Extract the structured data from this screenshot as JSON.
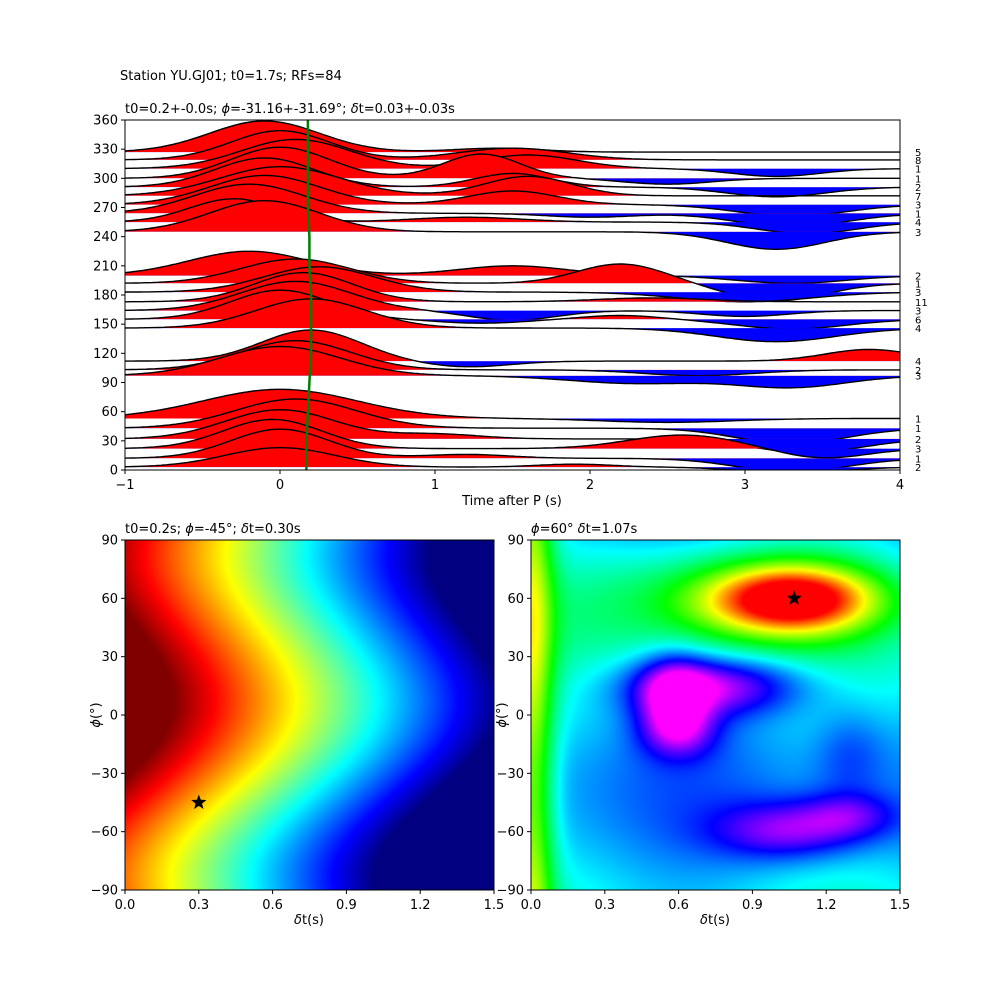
{
  "figure_title": "Station YU.GJ01; t0=1.7s; RFs=84",
  "chart_data": [
    {
      "type": "line",
      "subtype": "receiver-function-wiggles",
      "title": "t0=0.2+-0.0s; $\\phi$=-31.16+-31.69°; $\\delta$t=0.03+-0.03s",
      "xlabel": "Time after P (s)",
      "ylabel": "",
      "xlim": [
        -1,
        4
      ],
      "ylim": [
        0,
        360
      ],
      "xticks": [
        -1,
        0,
        1,
        2,
        3,
        4
      ],
      "yticks": [
        0,
        30,
        60,
        90,
        120,
        150,
        180,
        210,
        240,
        270,
        300,
        330,
        360
      ],
      "positive_fill": "#ff0000",
      "negative_fill": "#0000ff",
      "trace_color": "#000000",
      "pick_line_color": "#008000",
      "pick_line": {
        "x": [
          0.17,
          0.17,
          0.18,
          0.19,
          0.2,
          0.2,
          0.2,
          0.19,
          0.19,
          0.18,
          0.18,
          0.18,
          0.18
        ],
        "y": [
          0,
          30,
          60,
          90,
          120,
          150,
          180,
          210,
          240,
          270,
          300,
          330,
          360
        ]
      },
      "traces": [
        {
          "baz": 3,
          "count": "2",
          "peaks": [
            [
              0.0,
              20,
              0.5
            ],
            [
              1.9,
              3,
              0.35
            ],
            [
              3.3,
              -6,
              0.45
            ]
          ]
        },
        {
          "baz": 12,
          "count": "1",
          "peaks": [
            [
              0.0,
              30,
              0.45
            ],
            [
              1.2,
              4,
              0.4
            ],
            [
              3.3,
              -14,
              0.5
            ]
          ]
        },
        {
          "baz": 22,
          "count": "3",
          "peaks": [
            [
              -0.05,
              30,
              0.45
            ],
            [
              2.6,
              14,
              0.5
            ],
            [
              3.5,
              -10,
              0.4
            ]
          ]
        },
        {
          "baz": 32,
          "count": "2",
          "peaks": [
            [
              0.0,
              30,
              0.5
            ],
            [
              1.0,
              5,
              0.4
            ],
            [
              3.4,
              -14,
              0.5
            ]
          ]
        },
        {
          "baz": 43,
          "count": "1",
          "peaks": [
            [
              0.1,
              30,
              0.55
            ],
            [
              3.3,
              -16,
              0.5
            ]
          ]
        },
        {
          "baz": 53,
          "count": "1",
          "peaks": [
            [
              0.0,
              30,
              0.7
            ],
            [
              2.5,
              -4,
              0.6
            ]
          ]
        },
        {
          "baz": 97,
          "count": "3",
          "peaks": [
            [
              0.0,
              30,
              0.55
            ],
            [
              2.3,
              -8,
              0.6
            ],
            [
              3.3,
              -12,
              0.5
            ]
          ]
        },
        {
          "baz": 103,
          "count": "2",
          "peaks": [
            [
              0.1,
              30,
              0.5
            ],
            [
              2.7,
              -6,
              0.5
            ]
          ]
        },
        {
          "baz": 112,
          "count": "4",
          "peaks": [
            [
              0.2,
              32,
              0.45
            ],
            [
              1.2,
              -6,
              0.4
            ],
            [
              3.8,
              12,
              0.4
            ]
          ]
        },
        {
          "baz": 146,
          "count": "4",
          "peaks": [
            [
              0.2,
              30,
              0.5
            ],
            [
              3.2,
              -14,
              0.55
            ]
          ]
        },
        {
          "baz": 155,
          "count": "6",
          "peaks": [
            [
              0.0,
              30,
              0.45
            ],
            [
              1.3,
              -4,
              0.4
            ],
            [
              2.2,
              4,
              0.35
            ],
            [
              3.3,
              -10,
              0.5
            ]
          ]
        },
        {
          "baz": 164,
          "count": "3",
          "peaks": [
            [
              0.1,
              30,
              0.5
            ],
            [
              1.5,
              -10,
              0.4
            ],
            [
              3.0,
              -6,
              0.4
            ]
          ]
        },
        {
          "baz": 173,
          "count": "11",
          "peaks": [
            [
              0.15,
              30,
              0.45
            ],
            [
              2.4,
              4,
              0.5
            ]
          ]
        },
        {
          "baz": 183,
          "count": "3",
          "peaks": [
            [
              0.25,
              26,
              0.5
            ],
            [
              3.0,
              -10,
              0.6
            ]
          ]
        },
        {
          "baz": 192,
          "count": "1",
          "peaks": [
            [
              0.1,
              25,
              0.5
            ],
            [
              2.2,
              20,
              0.4
            ],
            [
              3.2,
              -18,
              0.45
            ]
          ]
        },
        {
          "baz": 200,
          "count": "2",
          "peaks": [
            [
              -0.2,
              25,
              0.55
            ],
            [
              1.5,
              10,
              0.5
            ],
            [
              3.3,
              -8,
              0.5
            ]
          ]
        },
        {
          "baz": 245,
          "count": "3",
          "peaks": [
            [
              -0.1,
              32,
              0.5
            ],
            [
              3.2,
              -18,
              0.45
            ]
          ]
        },
        {
          "baz": 255,
          "count": "4",
          "peaks": [
            [
              -0.3,
              24,
              0.4
            ],
            [
              1.2,
              5,
              0.5
            ],
            [
              3.4,
              -12,
              0.45
            ]
          ]
        },
        {
          "baz": 264,
          "count": "1",
          "peaks": [
            [
              -0.2,
              30,
              0.5
            ],
            [
              2.0,
              -4,
              0.4
            ],
            [
              3.3,
              -14,
              0.5
            ]
          ]
        },
        {
          "baz": 273,
          "count": "3",
          "peaks": [
            [
              -0.1,
              30,
              0.5
            ],
            [
              1.5,
              14,
              0.4
            ],
            [
              3.3,
              -12,
              0.5
            ]
          ]
        },
        {
          "baz": 282,
          "count": "7",
          "peaks": [
            [
              0.0,
              30,
              0.55
            ],
            [
              1.6,
              20,
              0.4
            ]
          ]
        },
        {
          "baz": 291,
          "count": "2",
          "peaks": [
            [
              -0.1,
              30,
              0.45
            ],
            [
              1.5,
              14,
              0.35
            ],
            [
              3.2,
              -10,
              0.45
            ]
          ]
        },
        {
          "baz": 300,
          "count": "1",
          "peaks": [
            [
              0.0,
              32,
              0.45
            ],
            [
              1.3,
              25,
              0.35
            ],
            [
              2.5,
              -6,
              0.4
            ]
          ]
        },
        {
          "baz": 310,
          "count": "1",
          "peaks": [
            [
              0.1,
              30,
              0.5
            ],
            [
              1.6,
              14,
              0.45
            ],
            [
              3.2,
              -8,
              0.4
            ]
          ]
        },
        {
          "baz": 319,
          "count": "8",
          "peaks": [
            [
              0.0,
              30,
              0.45
            ],
            [
              1.5,
              12,
              0.5
            ]
          ]
        },
        {
          "baz": 327,
          "count": "5",
          "peaks": [
            [
              -0.1,
              32,
              0.5
            ],
            [
              1.4,
              4,
              0.4
            ]
          ]
        }
      ]
    },
    {
      "type": "heatmap",
      "title": "t0=0.2s; $\\phi$=-45°; $\\delta$t=0.30s",
      "xlabel": "$\\delta$t(s)",
      "ylabel": "$\\phi$(°)",
      "xlim": [
        0,
        1.5
      ],
      "ylim": [
        -90,
        90
      ],
      "xticks": [
        "0.0",
        "0.3",
        "0.6",
        "0.9",
        "1.2",
        "1.5"
      ],
      "yticks": [
        "-90",
        "-60",
        "-30",
        "0",
        "30",
        "60",
        "90"
      ],
      "colormap": "jet-inverted (dark red = high, dark blue = low)",
      "best": {
        "dt": 0.3,
        "phi": -45
      },
      "marker": "star"
    },
    {
      "type": "heatmap",
      "title": "$\\phi$=60° $\\delta$t=1.07s",
      "xlabel": "$\\delta$t(s)",
      "ylabel": "$\\phi$(°)",
      "xlim": [
        0,
        1.5
      ],
      "ylim": [
        -90,
        90
      ],
      "xticks": [
        "0.0",
        "0.3",
        "0.6",
        "0.9",
        "1.2",
        "1.5"
      ],
      "yticks": [
        "-90",
        "-60",
        "-30",
        "0",
        "30",
        "60",
        "90"
      ],
      "colormap": "hsv (red = high, magenta = low)",
      "best": {
        "dt": 1.07,
        "phi": 60
      },
      "marker": "star"
    }
  ]
}
